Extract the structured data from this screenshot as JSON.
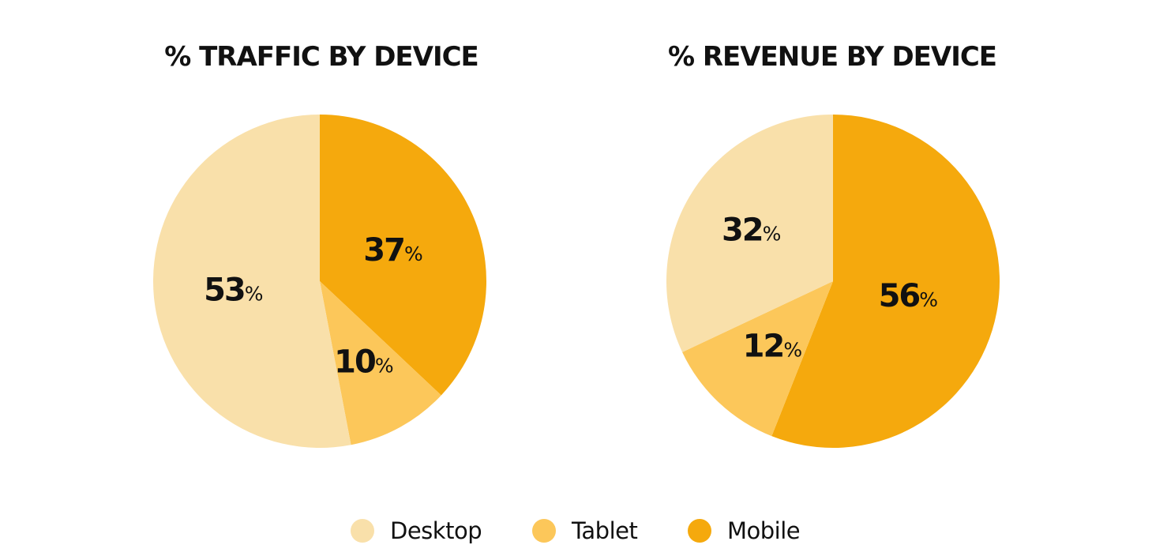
{
  "colors": {
    "desktop": "#F9E0AA",
    "tablet": "#FCC75A",
    "mobile": "#F5A90D"
  },
  "legend": [
    {
      "label": "Desktop",
      "color": "#F9E0AA"
    },
    {
      "label": "Tablet",
      "color": "#FCC75A"
    },
    {
      "label": "Mobile",
      "color": "#F5A90D"
    }
  ],
  "chart_data": [
    {
      "type": "pie",
      "title": "% TRAFFIC BY DEVICE",
      "categories": [
        "Mobile",
        "Tablet",
        "Desktop"
      ],
      "values": [
        37,
        10,
        53
      ],
      "labels": [
        {
          "num": "37",
          "unit": "%"
        },
        {
          "num": "10",
          "unit": "%"
        },
        {
          "num": "53",
          "unit": "%"
        }
      ],
      "start_angle_deg": 0,
      "direction": "clockwise",
      "legend_position": "bottom"
    },
    {
      "type": "pie",
      "title": "% REVENUE BY DEVICE",
      "categories": [
        "Mobile",
        "Tablet",
        "Desktop"
      ],
      "values": [
        56,
        12,
        32
      ],
      "labels": [
        {
          "num": "56",
          "unit": "%"
        },
        {
          "num": "12",
          "unit": "%"
        },
        {
          "num": "32",
          "unit": "%"
        }
      ],
      "start_angle_deg": 0,
      "direction": "clockwise",
      "legend_position": "bottom"
    }
  ]
}
